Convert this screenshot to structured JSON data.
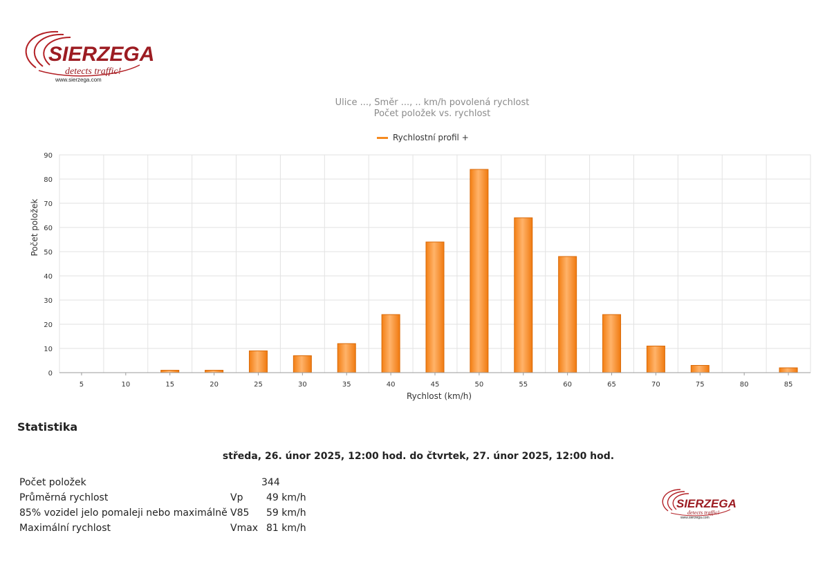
{
  "logo": {
    "brand": "SIERZEGA",
    "tagline": "detects traffic!",
    "url": "www.sierzega.com"
  },
  "chart_data": {
    "type": "bar",
    "title": "Ulice ..., Směr ..., .. km/h povolená rychlost",
    "subtitle": "Počet položek vs. rychlost",
    "xlabel": "Rychlost (km/h)",
    "ylabel": "Počet položek",
    "ylim": [
      0,
      90
    ],
    "yticks": [
      "0",
      "10",
      "20",
      "30",
      "40",
      "50",
      "60",
      "70",
      "80",
      "90"
    ],
    "legend_position": "top-center",
    "grid": true,
    "categories": [
      "5",
      "10",
      "15",
      "20",
      "25",
      "30",
      "35",
      "40",
      "45",
      "50",
      "55",
      "60",
      "65",
      "70",
      "75",
      "80",
      "85"
    ],
    "series": [
      {
        "name": "Rychlostní profil +",
        "color": "#f58a1f",
        "values": [
          0,
          0,
          1,
          1,
          9,
          7,
          12,
          24,
          54,
          84,
          64,
          48,
          24,
          11,
          3,
          0,
          2
        ]
      }
    ]
  },
  "stats": {
    "heading": "Statistika",
    "period": "středa, 26. únor 2025, 12:00 hod. do čtvrtek, 27. únor 2025, 12:00 hod.",
    "count_label": "Počet položek",
    "count_value": "344",
    "rows": [
      {
        "label": "Průměrná rychlost",
        "symbol": "Vp",
        "value": "49 km/h"
      },
      {
        "label": "85% vozidel jelo pomaleji nebo maximálně",
        "symbol": "V85",
        "value": "59 km/h"
      },
      {
        "label": "Maximální rychlost",
        "symbol": "Vmax",
        "value": "81 km/h"
      }
    ]
  }
}
